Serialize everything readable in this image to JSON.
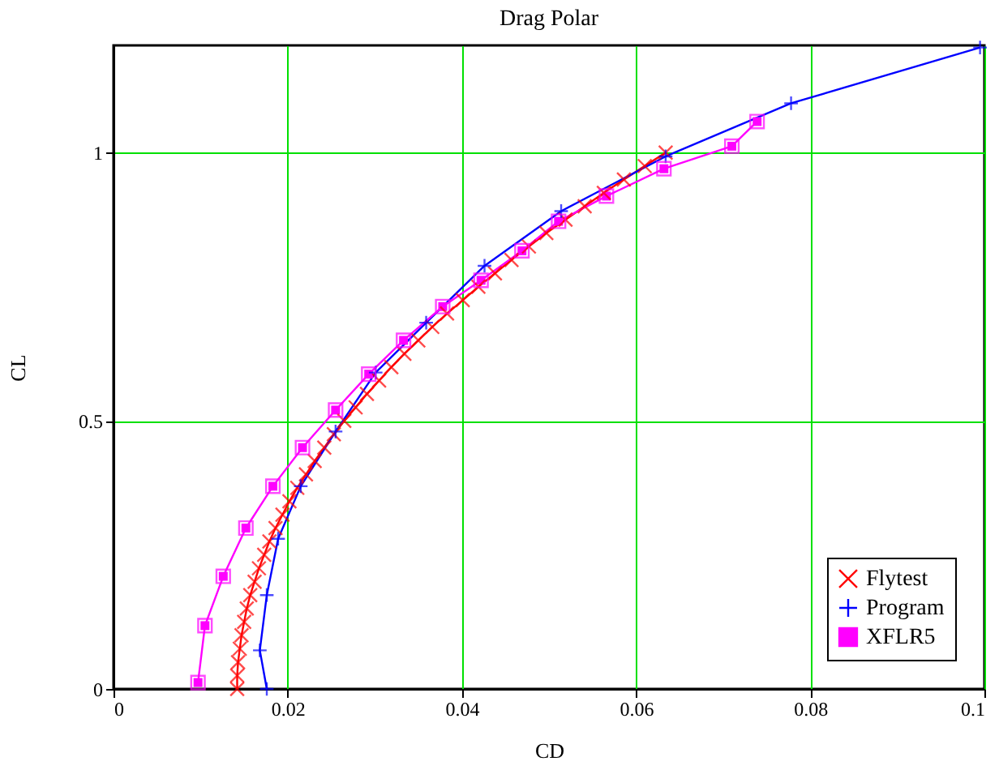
{
  "chart_data": {
    "type": "line",
    "title": "Drag Polar",
    "xlabel": "CD",
    "ylabel": "CL",
    "xlim": [
      0,
      0.1
    ],
    "xticks": [
      0,
      0.02,
      0.04,
      0.06,
      0.08,
      0.1
    ],
    "ylim": [
      0,
      1.2
    ],
    "yticks": [
      0,
      0.5,
      1
    ],
    "grid": true,
    "legend": "bottom right",
    "line_style": "solid",
    "series": [
      {
        "name": "Flytest",
        "color": "#ff0000",
        "marker": "x",
        "x": [
          0.0142,
          0.0142,
          0.0143,
          0.0145,
          0.0147,
          0.015,
          0.0153,
          0.0157,
          0.0162,
          0.0167,
          0.0173,
          0.0179,
          0.0186,
          0.0194,
          0.0202,
          0.0211,
          0.0221,
          0.0231,
          0.0242,
          0.0253,
          0.0265,
          0.0278,
          0.0291,
          0.0305,
          0.0319,
          0.0334,
          0.035,
          0.0366,
          0.0383,
          0.0401,
          0.0419,
          0.0438,
          0.0457,
          0.0477,
          0.0497,
          0.0519,
          0.0541,
          0.0563,
          0.0586,
          0.061,
          0.0634
        ],
        "values": [
          0,
          0.025,
          0.05,
          0.075,
          0.1,
          0.125,
          0.15,
          0.175,
          0.2,
          0.225,
          0.25,
          0.275,
          0.3,
          0.325,
          0.35,
          0.375,
          0.4,
          0.425,
          0.45,
          0.475,
          0.5,
          0.525,
          0.55,
          0.575,
          0.6,
          0.625,
          0.65,
          0.675,
          0.7,
          0.725,
          0.75,
          0.775,
          0.8,
          0.825,
          0.85,
          0.875,
          0.9,
          0.925,
          0.95,
          0.975,
          1.0
        ]
      },
      {
        "name": "Program",
        "color": "#0000ff",
        "marker": "cross",
        "x": [
          0.0176,
          0.0168,
          0.0176,
          0.0189,
          0.0215,
          0.0255,
          0.0301,
          0.0359,
          0.0426,
          0.0514,
          0.0634,
          0.0778,
          0.0995
        ],
        "values": [
          0.0,
          0.072,
          0.175,
          0.28,
          0.378,
          0.48,
          0.59,
          0.683,
          0.789,
          0.891,
          0.993,
          1.092,
          1.196
        ]
      },
      {
        "name": "XFLR5",
        "color": "#ff00ff",
        "marker": "square",
        "x": [
          0.0097,
          0.0105,
          0.0126,
          0.0152,
          0.0183,
          0.0217,
          0.0255,
          0.0293,
          0.0333,
          0.0378,
          0.0422,
          0.0469,
          0.0511,
          0.0566,
          0.0632,
          0.071,
          0.0739
        ],
        "values": [
          0.012,
          0.118,
          0.21,
          0.3,
          0.378,
          0.45,
          0.52,
          0.587,
          0.65,
          0.713,
          0.762,
          0.817,
          0.872,
          0.919,
          0.97,
          1.012,
          1.058
        ]
      }
    ]
  }
}
